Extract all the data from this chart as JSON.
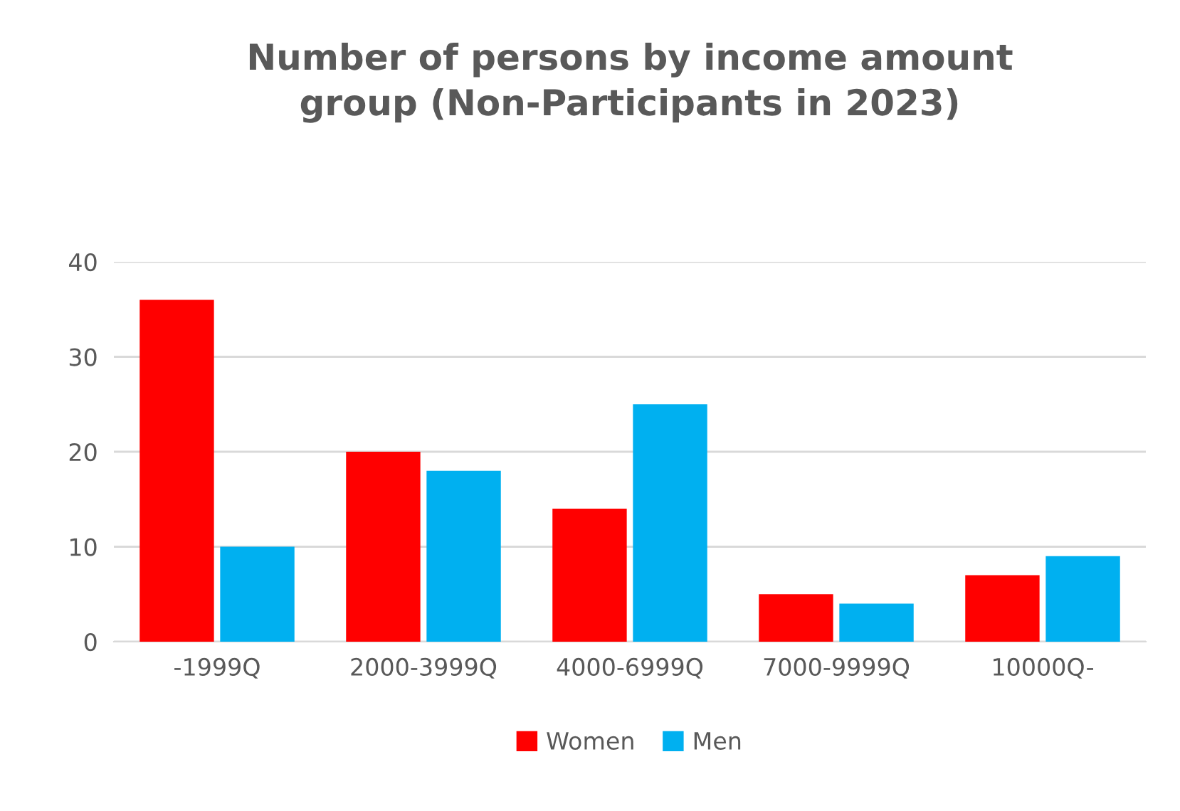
{
  "chart_data": {
    "type": "bar",
    "title": "Number of persons by income amount\ngroup (Non-Participants in 2023)",
    "categories": [
      "-1999Q",
      "2000-3999Q",
      "4000-6999Q",
      "7000-9999Q",
      "10000Q-"
    ],
    "series": [
      {
        "name": "Women",
        "color": "#ff0000",
        "values": [
          36,
          20,
          14,
          5,
          7
        ]
      },
      {
        "name": "Men",
        "color": "#00b0f0",
        "values": [
          10,
          18,
          25,
          4,
          9
        ]
      }
    ],
    "ylim": [
      0,
      40
    ],
    "yticks": [
      0,
      10,
      20,
      30,
      40
    ],
    "grid": "y",
    "legend": "bottom"
  }
}
